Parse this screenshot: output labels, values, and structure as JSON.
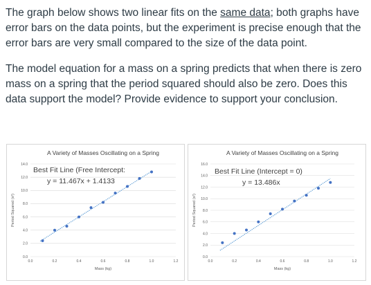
{
  "text": {
    "p1_a": "The graph below shows two linear fits on the ",
    "p1_link": "same data",
    "p1_b": "; both graphs have error bars on the data points, but the experiment is precise enough that the error bars are very small compared to the size of the data point.",
    "p2": "The model equation for a mass on a spring predicts that when there is zero mass on a spring that the period squared should also be zero. Does this data support the model? Provide evidence to support your conclusion."
  },
  "colors": {
    "point": "#4472c4",
    "trend": "#5b9bd5",
    "grid": "#d9d9d9",
    "text": "#2d3b45"
  },
  "chart_data": [
    {
      "type": "scatter",
      "title": "A Variety of Masses Oscillating on a Spring",
      "xlabel": "Mass (kg)",
      "ylabel": "Period Squared (s²)",
      "xlim": [
        0,
        1.2
      ],
      "ylim": [
        0,
        14
      ],
      "xticks": [
        "0.0",
        "0.2",
        "0.4",
        "0.6",
        "0.8",
        "1.0",
        "1.2"
      ],
      "yticks": [
        "0.0",
        "2.0",
        "4.0",
        "6.0",
        "8.0",
        "10.0",
        "12.0",
        "14.0"
      ],
      "fit_label_1": "Best Fit Line (Free Intercept:",
      "fit_label_2": "y = 11.467x + 1.4133",
      "fit": {
        "slope": 11.467,
        "intercept": 1.4133
      },
      "x": [
        0.1,
        0.2,
        0.3,
        0.4,
        0.5,
        0.6,
        0.7,
        0.8,
        0.9,
        1.0
      ],
      "y": [
        2.4,
        4.0,
        4.6,
        6.0,
        7.4,
        8.2,
        9.6,
        10.6,
        11.8,
        12.8
      ]
    },
    {
      "type": "scatter",
      "title": "A Variety of Masses Oscillating on a Spring",
      "xlabel": "Mass (kg)",
      "ylabel": "Period Squared (s²)",
      "xlim": [
        0,
        1.2
      ],
      "ylim": [
        0,
        16
      ],
      "xticks": [
        "0.0",
        "0.2",
        "0.4",
        "0.6",
        "0.8",
        "1.0",
        "1.2"
      ],
      "yticks": [
        "0.0",
        "2.0",
        "4.0",
        "6.0",
        "8.0",
        "10.0",
        "12.0",
        "14.0",
        "16.0"
      ],
      "fit_label_1": "Best Fit Line (Intercept = 0)",
      "fit_label_2": "y = 13.486x",
      "fit": {
        "slope": 13.486,
        "intercept": 0
      },
      "x": [
        0.1,
        0.2,
        0.3,
        0.4,
        0.5,
        0.6,
        0.7,
        0.8,
        0.9,
        1.0
      ],
      "y": [
        2.4,
        4.0,
        4.6,
        6.0,
        7.4,
        8.2,
        9.6,
        10.6,
        11.8,
        12.8
      ]
    }
  ]
}
